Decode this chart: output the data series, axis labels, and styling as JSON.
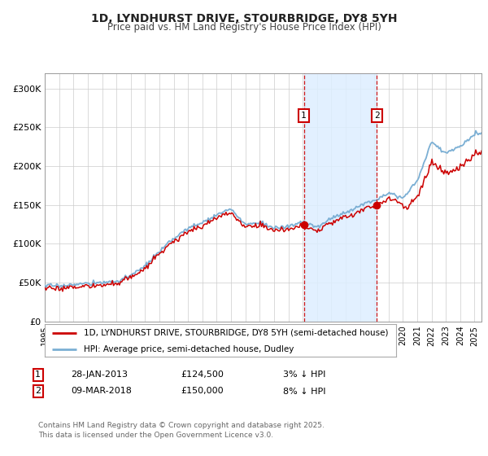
{
  "title": "1D, LYNDHURST DRIVE, STOURBRIDGE, DY8 5YH",
  "subtitle": "Price paid vs. HM Land Registry's House Price Index (HPI)",
  "title_fontsize": 10,
  "subtitle_fontsize": 8.5,
  "background_color": "#ffffff",
  "plot_bg_color": "#ffffff",
  "grid_color": "#cccccc",
  "hpi_color": "#7bafd4",
  "price_color": "#cc0000",
  "shade_color": "#ddeeff",
  "xmin": 1995,
  "xmax": 2025.5,
  "ymin": 0,
  "ymax": 320000,
  "yticks": [
    0,
    50000,
    100000,
    150000,
    200000,
    250000,
    300000
  ],
  "ytick_labels": [
    "£0",
    "£50K",
    "£100K",
    "£150K",
    "£200K",
    "£250K",
    "£300K"
  ],
  "xticks": [
    1995,
    1996,
    1997,
    1998,
    1999,
    2000,
    2001,
    2002,
    2003,
    2004,
    2005,
    2006,
    2007,
    2008,
    2009,
    2010,
    2011,
    2012,
    2013,
    2014,
    2015,
    2016,
    2017,
    2018,
    2019,
    2020,
    2021,
    2022,
    2023,
    2024,
    2025
  ],
  "sale1_date": 2013.08,
  "sale1_price": 124500,
  "sale1_label": "1",
  "sale2_date": 2018.19,
  "sale2_price": 150000,
  "sale2_label": "2",
  "shade_start": 2013.08,
  "shade_end": 2018.19,
  "legend_line1": "1D, LYNDHURST DRIVE, STOURBRIDGE, DY8 5YH (semi-detached house)",
  "legend_line2": "HPI: Average price, semi-detached house, Dudley",
  "table_row1": [
    "1",
    "28-JAN-2013",
    "£124,500",
    "3% ↓ HPI"
  ],
  "table_row2": [
    "2",
    "09-MAR-2018",
    "£150,000",
    "8% ↓ HPI"
  ],
  "footer": "Contains HM Land Registry data © Crown copyright and database right 2025.\nThis data is licensed under the Open Government Licence v3.0."
}
